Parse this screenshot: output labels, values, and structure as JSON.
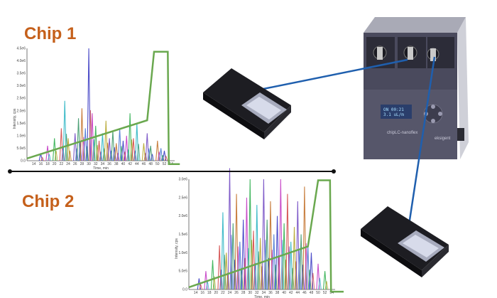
{
  "labels": {
    "chip1": "Chip 1",
    "chip2": "Chip 2"
  },
  "device": {
    "name": "chipLC-nanoflex",
    "brand": "eksigent"
  },
  "colors": {
    "label": "#c5601b",
    "gradient": "#6aa84f",
    "connector": "#1f5fae",
    "divider": "#111111"
  },
  "icons": {
    "chip1": "microfluidic-chip",
    "chip2": "microfluidic-chip",
    "device": "nanoflex-lc-instrument"
  },
  "chart_data": [
    {
      "type": "line",
      "title": "",
      "xlabel": "Time, min",
      "ylabel": "Intensity, cps",
      "xlim": [
        12,
        55
      ],
      "ylim": [
        0,
        4500000
      ],
      "x_ticks": [
        "14",
        "16",
        "18",
        "20",
        "22",
        "24",
        "26",
        "28",
        "30",
        "32",
        "34",
        "36",
        "38",
        "40",
        "42",
        "44",
        "46",
        "48",
        "50",
        "52",
        "54"
      ],
      "y_ticks": [
        "0.0",
        "5.0e5",
        "1.0e6",
        "1.5e6",
        "2.0e6",
        "2.5e6",
        "3.0e6",
        "3.5e6",
        "4.0e6",
        "4.5e6"
      ],
      "peaks": [
        [
          16,
          0.3
        ],
        [
          18,
          0.6
        ],
        [
          20,
          0.9
        ],
        [
          22,
          1.3
        ],
        [
          23,
          2.4
        ],
        [
          24,
          0.9
        ],
        [
          26,
          1.1
        ],
        [
          27,
          1.7
        ],
        [
          28,
          2.1
        ],
        [
          29,
          1.3
        ],
        [
          30,
          4.5
        ],
        [
          31,
          1.9
        ],
        [
          32,
          1.4
        ],
        [
          33,
          0.8
        ],
        [
          34,
          1.1
        ],
        [
          35,
          1.6
        ],
        [
          36,
          0.9
        ],
        [
          37,
          1.2
        ],
        [
          38,
          0.7
        ],
        [
          39,
          1.3
        ],
        [
          40,
          0.8
        ],
        [
          41,
          1.0
        ],
        [
          42,
          1.9
        ],
        [
          43,
          0.9
        ],
        [
          44,
          1.5
        ],
        [
          46,
          0.7
        ],
        [
          47,
          1.1
        ],
        [
          48,
          0.6
        ],
        [
          50,
          0.8
        ],
        [
          51,
          0.5
        ],
        [
          52,
          0.4
        ]
      ],
      "gradient": [
        [
          12,
          0.02
        ],
        [
          47,
          0.36
        ],
        [
          49,
          0.97
        ],
        [
          53,
          0.97
        ],
        [
          53.3,
          -0.03
        ],
        [
          56.5,
          -0.03
        ]
      ]
    },
    {
      "type": "line",
      "title": "",
      "xlabel": "Time, min",
      "ylabel": "Intensity, cps",
      "xlim": [
        12,
        55
      ],
      "ylim": [
        0,
        3000000
      ],
      "x_ticks": [
        "14",
        "16",
        "18",
        "20",
        "22",
        "24",
        "26",
        "28",
        "30",
        "32",
        "34",
        "36",
        "38",
        "40",
        "42",
        "44",
        "46",
        "48",
        "50",
        "52",
        "54"
      ],
      "y_ticks": [
        "0.0",
        "5.0e5",
        "1.0e6",
        "1.5e6",
        "2.0e6",
        "2.5e6",
        "3.0e6"
      ],
      "peaks": [
        [
          15,
          0.3
        ],
        [
          17,
          0.5
        ],
        [
          19,
          0.8
        ],
        [
          21,
          1.2
        ],
        [
          22,
          2.1
        ],
        [
          23,
          1.0
        ],
        [
          24,
          3.3
        ],
        [
          25,
          1.8
        ],
        [
          26,
          2.6
        ],
        [
          27,
          1.3
        ],
        [
          28,
          1.9
        ],
        [
          29,
          2.5
        ],
        [
          30,
          3.0
        ],
        [
          31,
          1.6
        ],
        [
          32,
          2.3
        ],
        [
          33,
          1.4
        ],
        [
          34,
          3.0
        ],
        [
          35,
          1.9
        ],
        [
          36,
          2.4
        ],
        [
          37,
          1.5
        ],
        [
          38,
          2.0
        ],
        [
          39,
          3.0
        ],
        [
          40,
          1.8
        ],
        [
          41,
          2.6
        ],
        [
          42,
          1.3
        ],
        [
          43,
          1.7
        ],
        [
          44,
          2.4
        ],
        [
          45,
          1.5
        ],
        [
          46,
          2.8
        ],
        [
          47,
          1.2
        ],
        [
          48,
          1.0
        ],
        [
          50,
          0.7
        ],
        [
          52,
          0.5
        ]
      ],
      "gradient": [
        [
          12,
          0.02
        ],
        [
          47,
          0.39
        ],
        [
          50,
          0.99
        ],
        [
          53.5,
          0.99
        ],
        [
          53.8,
          -0.02
        ],
        [
          57.5,
          -0.02
        ]
      ]
    }
  ]
}
